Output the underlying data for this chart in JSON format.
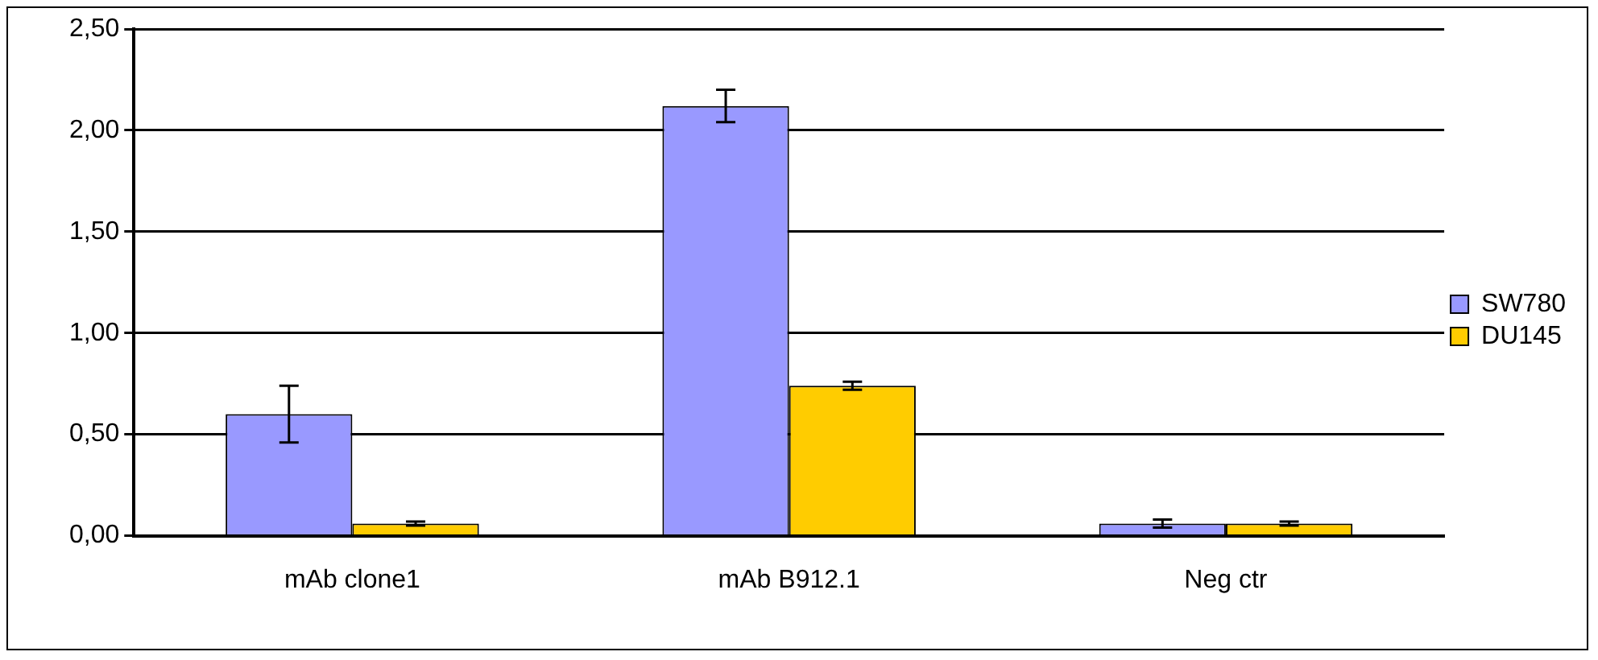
{
  "chart_data": {
    "type": "bar",
    "categories": [
      "mAb clone1",
      "mAb B912.1",
      "Neg ctr"
    ],
    "series": [
      {
        "name": "SW780",
        "color": "#9999ff",
        "values": [
          0.6,
          2.12,
          0.06
        ],
        "errors": [
          0.14,
          0.08,
          0.02
        ]
      },
      {
        "name": "DU145",
        "color": "#ffcc00",
        "values": [
          0.06,
          0.74,
          0.06
        ],
        "errors": [
          0.01,
          0.02,
          0.01
        ]
      }
    ],
    "ylim": [
      0,
      2.5
    ],
    "yticks": [
      {
        "value": 0,
        "label": "0,00"
      },
      {
        "value": 0.5,
        "label": "0,50"
      },
      {
        "value": 1,
        "label": "1,00"
      },
      {
        "value": 1.5,
        "label": "1,50"
      },
      {
        "value": 2,
        "label": "2,00"
      },
      {
        "value": 2.5,
        "label": "2,50"
      }
    ],
    "grid": "y",
    "legend": "right"
  }
}
